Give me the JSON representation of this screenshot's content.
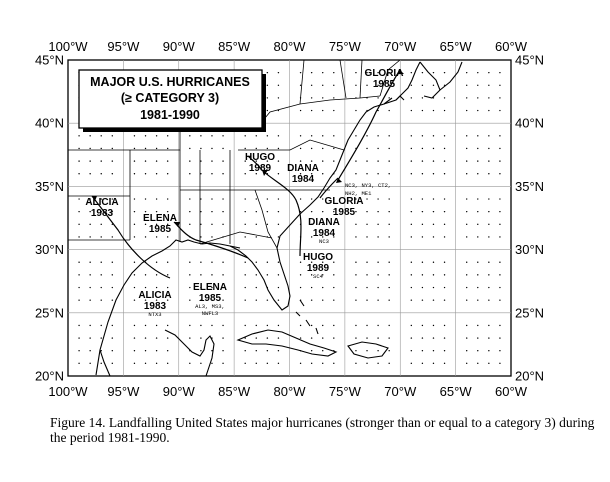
{
  "map": {
    "title": [
      "MAJOR U.S. HURRICANES",
      "(≥ CATEGORY 3)",
      "1981-1990"
    ],
    "lon_labels": [
      "100°W",
      "95°W",
      "90°W",
      "85°W",
      "80°W",
      "75°W",
      "70°W",
      "65°W",
      "60°W"
    ],
    "lat_labels": [
      "45°N",
      "40°N",
      "35°N",
      "30°N",
      "25°N",
      "20°N"
    ],
    "storms": [
      {
        "id": "gloria-ne",
        "lines": [
          "GLORIA",
          "1985"
        ]
      },
      {
        "id": "hugo-n",
        "lines": [
          "HUGO",
          "1989"
        ]
      },
      {
        "id": "diana-n",
        "lines": [
          "DIANA",
          "1984"
        ]
      },
      {
        "id": "alicia-w",
        "lines": [
          "ALICIA",
          "1983"
        ]
      },
      {
        "id": "elena-n",
        "lines": [
          "ELENA",
          "1985"
        ]
      },
      {
        "id": "gloria-se",
        "lines": [
          "GLORIA",
          "1985"
        ]
      },
      {
        "id": "diana-s",
        "lines": [
          "DIANA",
          "1984"
        ],
        "states": "NC3"
      },
      {
        "id": "hugo-s",
        "lines": [
          "HUGO",
          "1989"
        ],
        "states": "SC4"
      },
      {
        "id": "elena-s",
        "lines": [
          "ELENA",
          "1985"
        ],
        "states": [
          "AL3, MS3,",
          "NWFL3"
        ]
      },
      {
        "id": "alicia-s",
        "lines": [
          "ALICIA",
          "1983"
        ],
        "states": "NTX3"
      }
    ],
    "gloria_states": [
      "NC3, NY3, CT2,",
      "NH2, ME1"
    ]
  },
  "caption": "Figure 14. Landfalling United States major hurricanes (stronger than or equal to a category 3) during the period 1981-1990."
}
